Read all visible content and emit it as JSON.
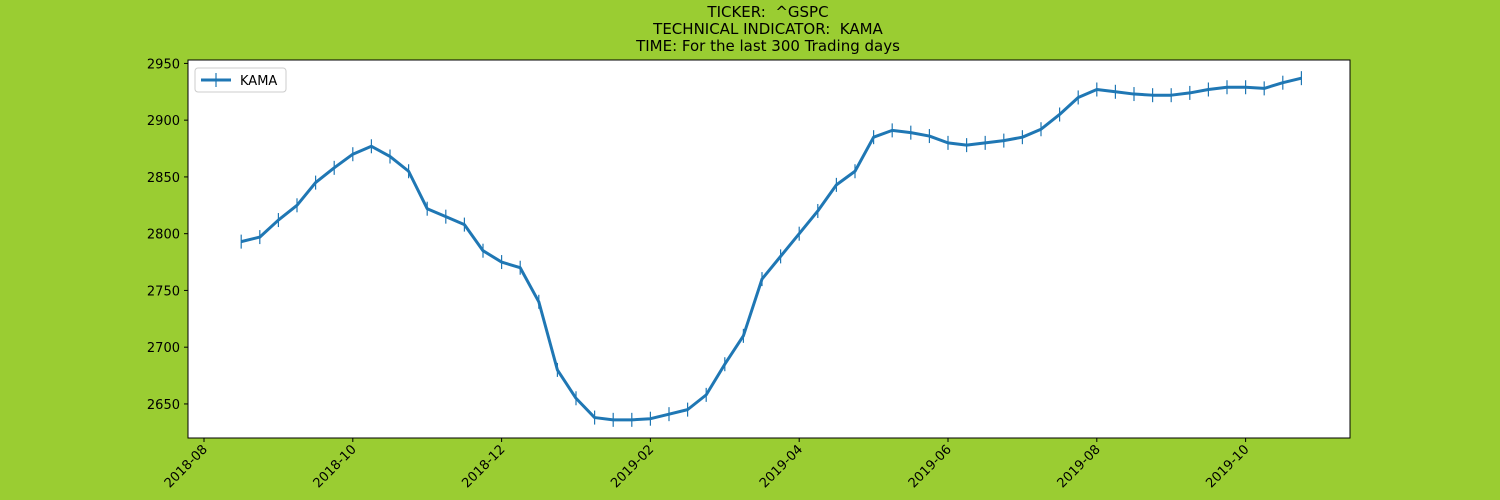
{
  "chart_data": {
    "type": "line",
    "title": [
      "TICKER:  ^GSPC",
      "TECHNICAL INDICATOR:  KAMA",
      "TIME: For the last 300 Trading days"
    ],
    "categories": [
      "2018-08",
      null,
      null,
      null,
      null,
      null,
      null,
      null,
      "2018-10",
      null,
      null,
      null,
      null,
      null,
      null,
      null,
      "2018-12",
      null,
      null,
      null,
      null,
      null,
      null,
      null,
      "2019-02",
      null,
      null,
      null,
      null,
      null,
      null,
      null,
      "2019-04",
      null,
      null,
      null,
      null,
      null,
      null,
      null,
      "2019-06",
      null,
      null,
      null,
      null,
      null,
      null,
      null,
      "2019-08",
      null,
      null,
      null,
      null,
      null,
      null,
      null,
      "2019-10",
      null,
      null,
      null
    ],
    "series": [
      {
        "name": "KAMA",
        "color": "#1f77b4",
        "values": [
          null,
          null,
          2793,
          2797,
          2812,
          2825,
          2845,
          2858,
          2870,
          2877,
          2868,
          2855,
          2822,
          2815,
          2808,
          2785,
          2775,
          2770,
          2740,
          2680,
          2655,
          2638,
          2636,
          2636,
          2637,
          2641,
          2645,
          2658,
          2685,
          2710,
          2760,
          2780,
          2800,
          2820,
          2843,
          2855,
          2885,
          2891,
          2889,
          2886,
          2880,
          2878,
          2880,
          2882,
          2885,
          2892,
          2905,
          2920,
          2927,
          2925,
          2923,
          2922,
          2922,
          2924,
          2927,
          2929,
          2929,
          2928,
          2933,
          2937
        ]
      }
    ],
    "ylim": [
      2620,
      2953
    ],
    "yticks": [
      2650,
      2700,
      2750,
      2800,
      2850,
      2900,
      2950
    ],
    "grid": false,
    "legend": "upper-left",
    "background": "#9acd32"
  }
}
